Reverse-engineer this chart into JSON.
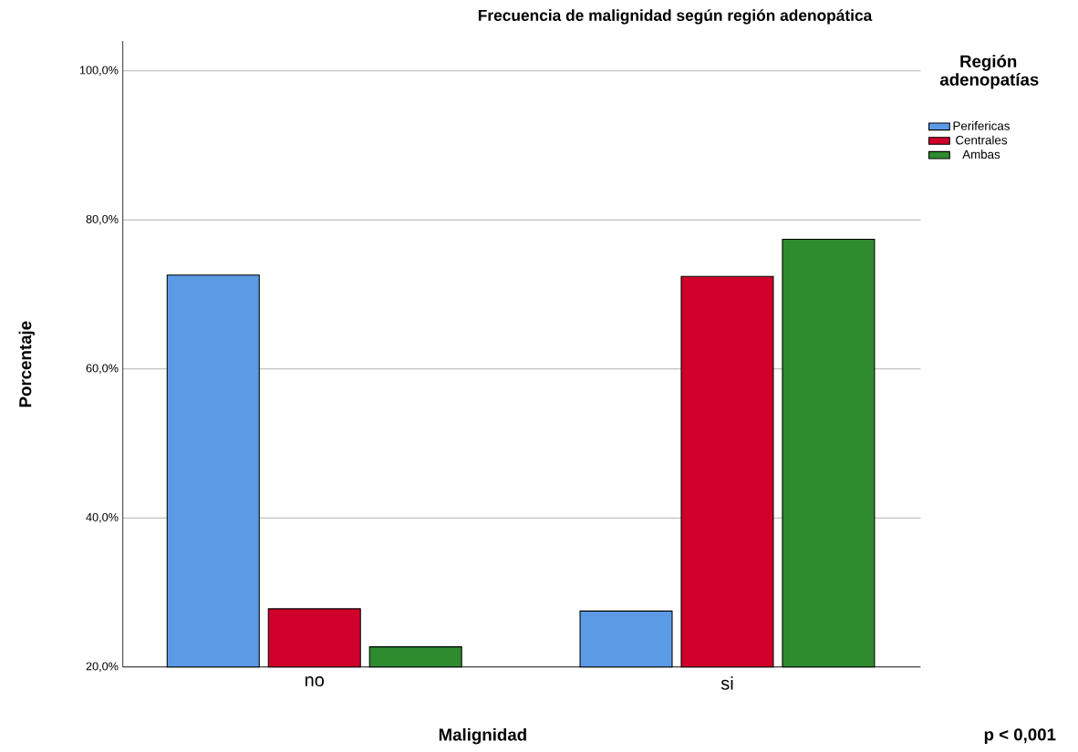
{
  "chart_data": {
    "type": "bar",
    "title": "Frecuencia de malignidad según región adenopática",
    "xlabel": "Malignidad",
    "ylabel": "Porcentaje",
    "legend_title": "Región adenopatías",
    "annotations": [
      "p < 0,001"
    ],
    "categories": [
      "no",
      "si"
    ],
    "series": [
      {
        "name": "Perifericas",
        "color": "#5b9be6",
        "values": [
          72.6,
          27.5
        ]
      },
      {
        "name": "Centrales",
        "color": "#d0002b",
        "values": [
          27.8,
          72.4
        ]
      },
      {
        "name": "Ambas",
        "color": "#2e8b2e",
        "values": [
          22.7,
          77.4
        ]
      }
    ],
    "ylim": [
      20,
      104
    ],
    "yticks": [
      {
        "value": 20,
        "label": "20,0%"
      },
      {
        "value": 40,
        "label": "40,0%"
      },
      {
        "value": 60,
        "label": "60,0%"
      },
      {
        "value": 80,
        "label": "80,0%"
      },
      {
        "value": 100,
        "label": "100,0%"
      }
    ],
    "grid": "y",
    "legend": "right"
  }
}
